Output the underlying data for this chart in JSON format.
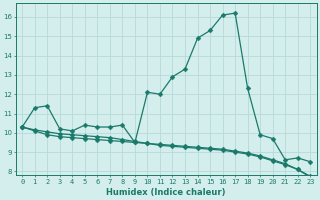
{
  "xlabel": "Humidex (Indice chaleur)",
  "bg_color": "#d4eeee",
  "grid_color": "#b8d8d8",
  "line_color": "#1a7a6a",
  "xlim": [
    -0.5,
    23.5
  ],
  "ylim": [
    7.8,
    16.7
  ],
  "yticks": [
    8,
    9,
    10,
    11,
    12,
    13,
    14,
    15,
    16
  ],
  "xticks": [
    0,
    1,
    2,
    3,
    4,
    5,
    6,
    7,
    8,
    9,
    10,
    11,
    12,
    13,
    14,
    15,
    16,
    17,
    18,
    19,
    20,
    21,
    22,
    23
  ],
  "line1_x": [
    0,
    1,
    2,
    3,
    4,
    5,
    6,
    7,
    8,
    9,
    10,
    11,
    12,
    13,
    14,
    15,
    16,
    17,
    18,
    19,
    20,
    21,
    22,
    23
  ],
  "line1_y": [
    10.3,
    11.3,
    11.4,
    10.2,
    10.1,
    10.4,
    10.3,
    10.3,
    10.4,
    9.5,
    12.1,
    12.0,
    12.9,
    13.3,
    14.9,
    15.3,
    16.1,
    16.2,
    12.3,
    9.9,
    9.7,
    8.6,
    8.7,
    8.5
  ],
  "line2_x": [
    0,
    1,
    2,
    3,
    4,
    5,
    6,
    7,
    8,
    9,
    10,
    11,
    12,
    13,
    14,
    15,
    16,
    17,
    18,
    19,
    20,
    21,
    22,
    23
  ],
  "line2_y": [
    10.3,
    10.15,
    10.05,
    9.95,
    9.9,
    9.85,
    9.8,
    9.75,
    9.65,
    9.55,
    9.45,
    9.35,
    9.3,
    9.25,
    9.2,
    9.15,
    9.1,
    9.0,
    8.9,
    8.75,
    8.55,
    8.35,
    8.1,
    7.75
  ],
  "line3_x": [
    0,
    1,
    2,
    3,
    4,
    5,
    6,
    7,
    8,
    9,
    10,
    11,
    12,
    13,
    14,
    15,
    16,
    17,
    18,
    19,
    20,
    21,
    22,
    23
  ],
  "line3_y": [
    10.3,
    10.1,
    9.9,
    9.8,
    9.75,
    9.7,
    9.65,
    9.6,
    9.55,
    9.5,
    9.45,
    9.4,
    9.35,
    9.3,
    9.25,
    9.2,
    9.15,
    9.05,
    8.95,
    8.8,
    8.6,
    8.4,
    8.1,
    7.7
  ]
}
